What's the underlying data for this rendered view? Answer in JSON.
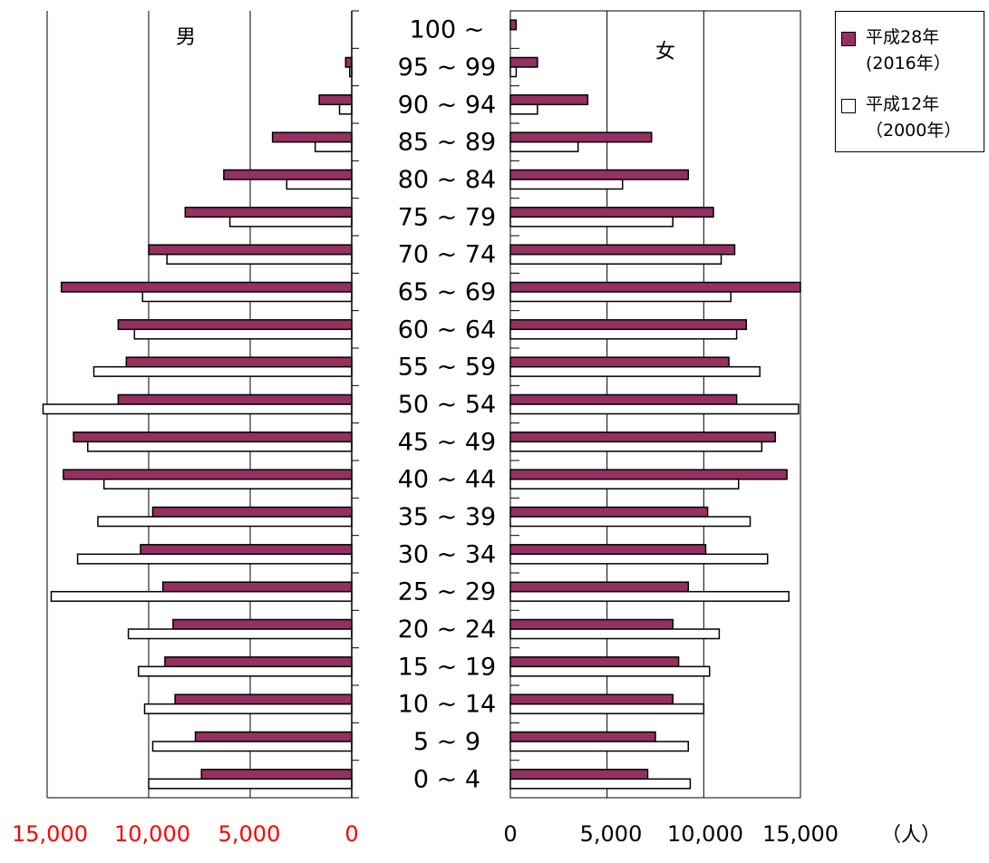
{
  "chart_data": {
    "type": "bar",
    "orientation": "horizontal-pyramid",
    "unit_label": "（人）",
    "categories": [
      "0 ~ 4",
      "5 ~ 9",
      "10 ~ 14",
      "15 ~ 19",
      "20 ~ 24",
      "25 ~ 29",
      "30 ~ 34",
      "35 ~ 39",
      "40 ~ 44",
      "45 ~ 49",
      "50 ~ 54",
      "55 ~ 59",
      "60 ~ 64",
      "65 ~ 69",
      "70 ~ 74",
      "75 ~ 79",
      "80 ~ 84",
      "85 ~ 89",
      "90 ~ 94",
      "95 ~ 99",
      "100 ~"
    ],
    "male": {
      "label": "男",
      "xlim": [
        0,
        15000
      ],
      "tick_labels": [
        "15,000",
        "10,000",
        "5,000",
        "0"
      ],
      "tick_values": [
        15000,
        10000,
        5000,
        0
      ],
      "series": [
        {
          "name": "平成28年(2016年)",
          "values": [
            7400,
            7700,
            8700,
            9200,
            8800,
            9300,
            10400,
            9800,
            14200,
            13700,
            11500,
            11100,
            11500,
            14300,
            10000,
            8200,
            6300,
            3900,
            1600,
            300,
            0
          ]
        },
        {
          "name": "平成12年(2000年)",
          "values": [
            10000,
            9800,
            10200,
            10500,
            11000,
            14800,
            13500,
            12500,
            12200,
            13000,
            15200,
            12700,
            10700,
            10300,
            9100,
            6000,
            3200,
            1800,
            600,
            100,
            0
          ]
        }
      ]
    },
    "female": {
      "label": "女",
      "xlim": [
        0,
        15000
      ],
      "tick_labels": [
        "0",
        "5,000",
        "10,000",
        "15,000"
      ],
      "tick_values": [
        0,
        5000,
        10000,
        15000
      ],
      "series": [
        {
          "name": "平成28年(2016年)",
          "values": [
            7100,
            7500,
            8400,
            8700,
            8400,
            9200,
            10100,
            10200,
            14300,
            13700,
            11700,
            11300,
            12200,
            15000,
            11600,
            10500,
            9200,
            7300,
            4000,
            1400,
            300
          ]
        },
        {
          "name": "平成12年(2000年)",
          "values": [
            9300,
            9200,
            10000,
            10300,
            10800,
            14400,
            13300,
            12400,
            11800,
            13000,
            14900,
            12900,
            11700,
            11400,
            10900,
            8400,
            5800,
            3500,
            1400,
            300,
            0
          ]
        }
      ]
    },
    "legend": {
      "placement": "top-right",
      "entries": [
        {
          "name_line1": "平成28年",
          "name_line2": "(2016年）",
          "color": "#953160",
          "marker": "filled-square"
        },
        {
          "name_line1": "平成12年",
          "name_line2": "（2000年）",
          "color": "#ffffff",
          "marker": "open-square"
        }
      ]
    },
    "grid": true,
    "colors": {
      "series_2016": "#953160",
      "series_2000": "#ffffff",
      "axis_label_left": "#ff0000",
      "axis_label_right": "#000000"
    }
  }
}
